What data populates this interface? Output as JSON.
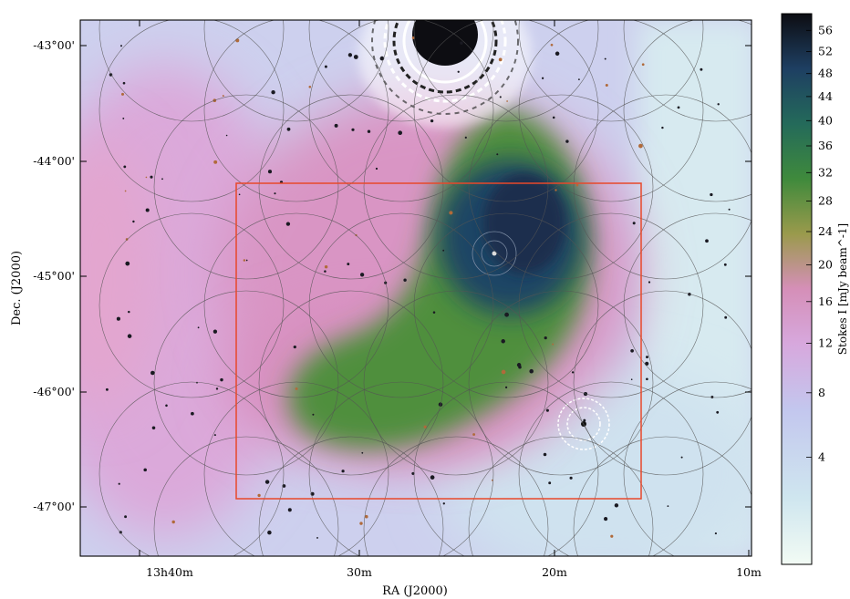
{
  "figure": {
    "xaxis_title": "RA (J2000)",
    "yaxis_title": "Dec. (J2000)",
    "x_ticks": [
      "13h40m",
      "30m",
      "20m",
      "10m"
    ],
    "y_ticks": [
      "-43°00'",
      "-44°00'",
      "-45°00'",
      "-46°00'",
      "-47°00'"
    ],
    "colorbar_title": "Stokes I [mJy beam^-1]",
    "colorbar_ticks": [
      "56",
      "52",
      "48",
      "44",
      "40",
      "36",
      "32",
      "28",
      "24",
      "20",
      "16",
      "12",
      "8",
      "4"
    ],
    "colors": {
      "region_box": "#e8482a",
      "beam_circles": "#555555",
      "cmap_low": "#f2fbf4",
      "cmap_mid_low": "#c6d2ee",
      "cmap_mid": "#d9a3d6",
      "cmap_green": "#3f8a3c",
      "cmap_high": "#1b3a5a",
      "cmap_top": "#0d0d12"
    }
  }
}
